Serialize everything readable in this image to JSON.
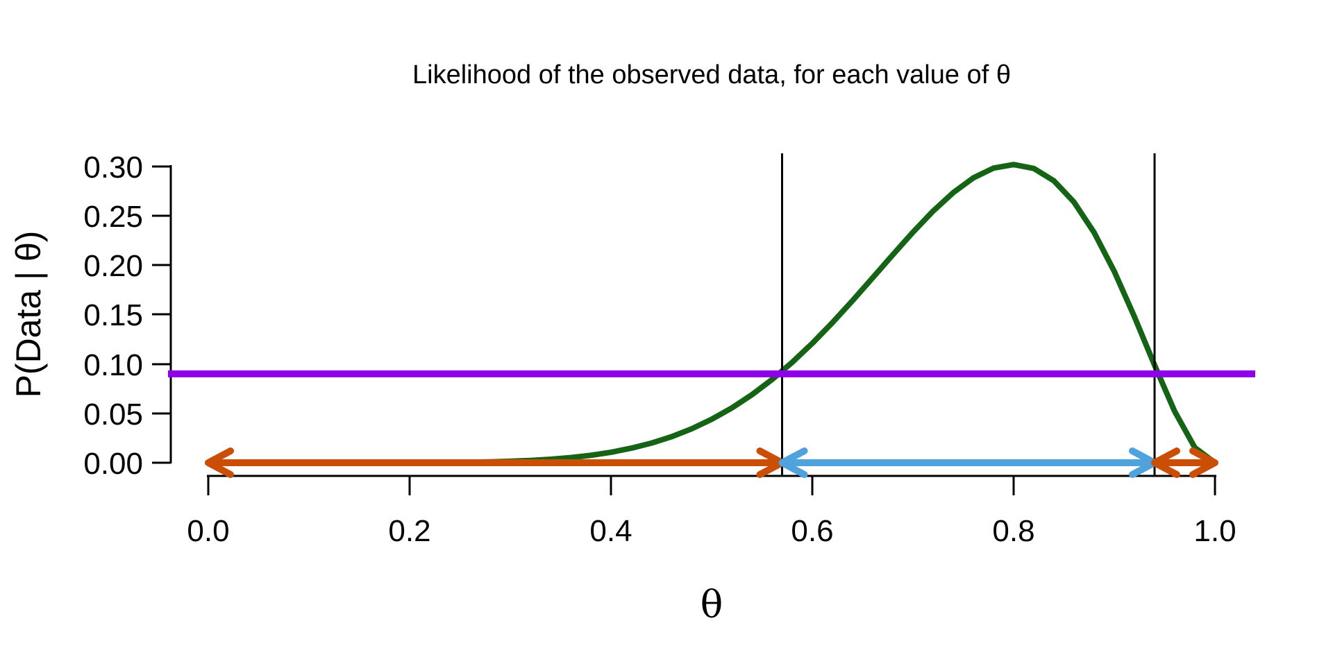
{
  "title": "Likelihood of the observed data, for each value of θ",
  "axes": {
    "x_label": "θ",
    "y_label": "P(Data | θ)",
    "x_ticks": [
      "0.0",
      "0.2",
      "0.4",
      "0.6",
      "0.8",
      "1.0"
    ],
    "y_ticks": [
      "0.00",
      "0.05",
      "0.10",
      "0.15",
      "0.20",
      "0.25",
      "0.30"
    ]
  },
  "chart_data": {
    "type": "line",
    "title": "Likelihood of the observed data, for each value of θ",
    "xlabel": "θ",
    "ylabel": "P(Data | θ)",
    "xlim": [
      0,
      1
    ],
    "ylim": [
      0,
      0.3
    ],
    "x_tick_values": [
      0.0,
      0.2,
      0.4,
      0.6,
      0.8,
      1.0
    ],
    "y_tick_values": [
      0.0,
      0.05,
      0.1,
      0.15,
      0.2,
      0.25,
      0.3
    ],
    "grid": false,
    "legend": null,
    "curve": {
      "name": "binomial likelihood P(Data | θ) = 45 θ^8 (1−θ)^2, peak ≈ 0.302 at θ = 0.8",
      "color": "#156415",
      "peak": {
        "theta": 0.8,
        "value": 0.302
      },
      "points": [
        [
          0.0,
          0
        ],
        [
          0.02,
          0
        ],
        [
          0.04,
          0
        ],
        [
          0.06,
          0
        ],
        [
          0.08,
          0
        ],
        [
          0.1,
          0
        ],
        [
          0.12,
          1.5e-06
        ],
        [
          0.14,
          5e-06
        ],
        [
          0.16,
          1.36e-05
        ],
        [
          0.18,
          3.33e-05
        ],
        [
          0.2,
          7.37e-05
        ],
        [
          0.22,
          0.00015
        ],
        [
          0.24,
          0.00029
        ],
        [
          0.26,
          0.00051
        ],
        [
          0.28,
          0.00088
        ],
        [
          0.3,
          0.00145
        ],
        [
          0.32,
          0.00229
        ],
        [
          0.34,
          0.0035
        ],
        [
          0.36,
          0.0052
        ],
        [
          0.38,
          0.00752
        ],
        [
          0.4,
          0.01062
        ],
        [
          0.42,
          0.01466
        ],
        [
          0.44,
          0.01982
        ],
        [
          0.46,
          0.02631
        ],
        [
          0.48,
          0.03429
        ],
        [
          0.5,
          0.04395
        ],
        [
          0.52,
          0.05543
        ],
        [
          0.54,
          0.06885
        ],
        [
          0.56,
          0.08426
        ],
        [
          0.58,
          0.10166
        ],
        [
          0.6,
          0.12093
        ],
        [
          0.62,
          0.14188
        ],
        [
          0.64,
          0.16416
        ],
        [
          0.66,
          0.18729
        ],
        [
          0.68,
          0.21066
        ],
        [
          0.7,
          0.23347
        ],
        [
          0.72,
          0.25479
        ],
        [
          0.74,
          0.27354
        ],
        [
          0.76,
          0.2885
        ],
        [
          0.78,
          0.29841
        ],
        [
          0.8,
          0.30199
        ],
        [
          0.82,
          0.29804
        ],
        [
          0.84,
          0.28555
        ],
        [
          0.86,
          0.26391
        ],
        [
          0.88,
          0.23304
        ],
        [
          0.9,
          0.19371
        ],
        [
          0.92,
          0.14781
        ],
        [
          0.94,
          0.09875
        ],
        [
          0.96,
          0.05194
        ],
        [
          0.98,
          0.01531
        ],
        [
          1.0,
          0
        ]
      ]
    },
    "hline": {
      "value": 0.09,
      "color": "#8E00E8",
      "name": "horizontal likelihood threshold line"
    },
    "vlines": {
      "values": [
        0.57,
        0.94
      ],
      "color": "#000000",
      "name": "interval boundary lines"
    },
    "intervals": [
      {
        "from": 0.0,
        "to": 0.57,
        "color": "#CB4E07",
        "name": "left outside interval arrow"
      },
      {
        "from": 0.57,
        "to": 0.94,
        "color": "#4FA2DC",
        "name": "inside interval arrow"
      },
      {
        "from": 0.94,
        "to": 1.0,
        "color": "#CB4E07",
        "name": "right outside interval arrow"
      }
    ]
  }
}
